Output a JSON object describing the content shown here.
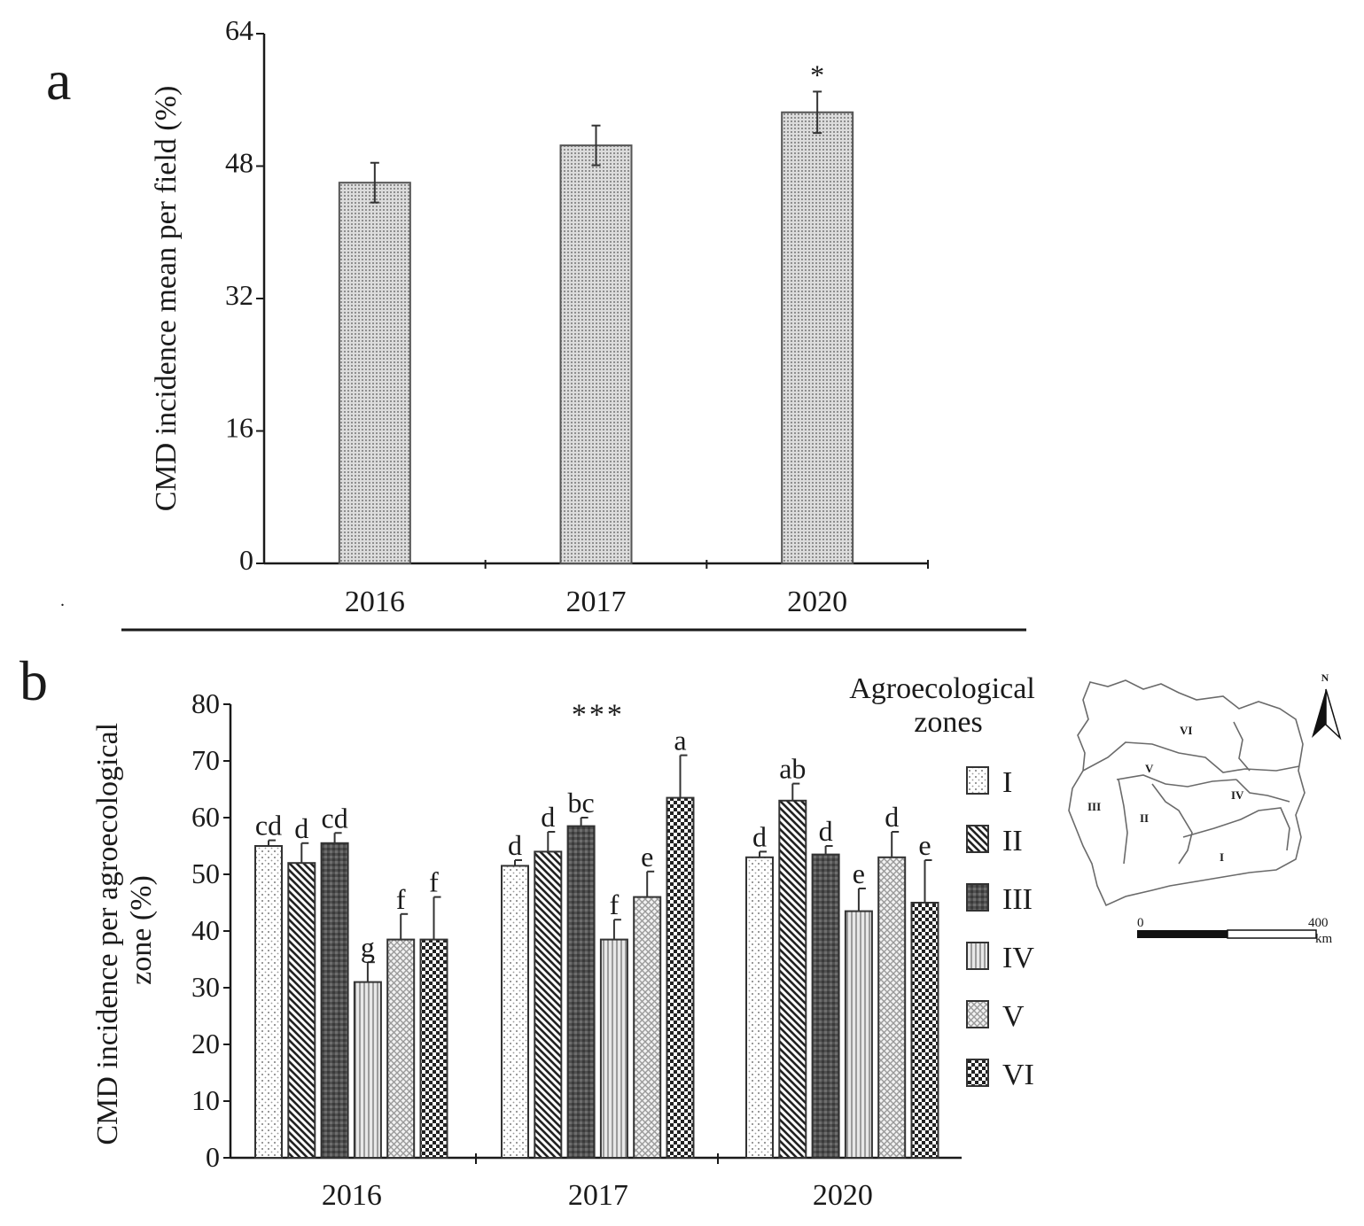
{
  "panel_labels": {
    "a": "a",
    "b": "b"
  },
  "chart_data": [
    {
      "id": "a",
      "type": "bar",
      "title": "",
      "xlabel": "",
      "ylabel": "CMD incidence mean per field (%)",
      "categories": [
        "2016",
        "2017",
        "2020"
      ],
      "values": [
        46,
        50.5,
        54.5
      ],
      "errors": [
        2.4,
        2.4,
        2.5
      ],
      "annotations": [
        "",
        "",
        "*"
      ],
      "ylim": [
        0,
        64
      ],
      "yticks": [
        "0",
        "16",
        "32",
        "48",
        "64"
      ],
      "pattern": "fine-dotted grey"
    },
    {
      "id": "b",
      "type": "bar",
      "title": "",
      "xlabel": "",
      "ylabel": "CMD incidence per agroecological zone (%)",
      "categories": [
        "2016",
        "2017",
        "2020"
      ],
      "ylim": [
        0,
        80
      ],
      "yticks": [
        "0",
        "10",
        "20",
        "30",
        "40",
        "50",
        "60",
        "70",
        "80"
      ],
      "significance": [
        "",
        "***",
        ""
      ],
      "series": [
        {
          "name": "I",
          "values": [
            55,
            51.5,
            53
          ],
          "errors": [
            1,
            1,
            1
          ],
          "letters": [
            "cd",
            "d",
            "d"
          ],
          "pattern": "dots"
        },
        {
          "name": "II",
          "values": [
            52,
            54,
            63
          ],
          "errors": [
            3.5,
            3.5,
            3
          ],
          "letters": [
            "d",
            "d",
            "ab"
          ],
          "pattern": "diagonal"
        },
        {
          "name": "III",
          "values": [
            55.5,
            58.5,
            53.5
          ],
          "errors": [
            1.8,
            1.5,
            1.5
          ],
          "letters": [
            "cd",
            "bc",
            "d"
          ],
          "pattern": "dark-grid"
        },
        {
          "name": "IV",
          "values": [
            31,
            38.5,
            43.5
          ],
          "errors": [
            3.5,
            3.5,
            4
          ],
          "letters": [
            "g",
            "f",
            "e"
          ],
          "pattern": "vertical"
        },
        {
          "name": "V",
          "values": [
            38.5,
            46,
            53
          ],
          "errors": [
            4.5,
            4.5,
            4.5
          ],
          "letters": [
            "f",
            "e",
            "d"
          ],
          "pattern": "crosshatch"
        },
        {
          "name": "VI",
          "values": [
            38.5,
            63.5,
            45
          ],
          "errors": [
            7.5,
            7.5,
            7.5
          ],
          "letters": [
            "f",
            "a",
            "e"
          ],
          "pattern": "checker"
        }
      ],
      "legend_title": "Agroecological zones"
    }
  ],
  "legend": {
    "title_line1": "Agroecological",
    "title_line2": "zones",
    "items": [
      "I",
      "II",
      "III",
      "IV",
      "V",
      "VI"
    ]
  },
  "map": {
    "zones": [
      "VI",
      "V",
      "IV",
      "III",
      "II",
      "I"
    ],
    "north": "N",
    "scale_start": "0",
    "scale_end": "400",
    "scale_unit": "km"
  }
}
